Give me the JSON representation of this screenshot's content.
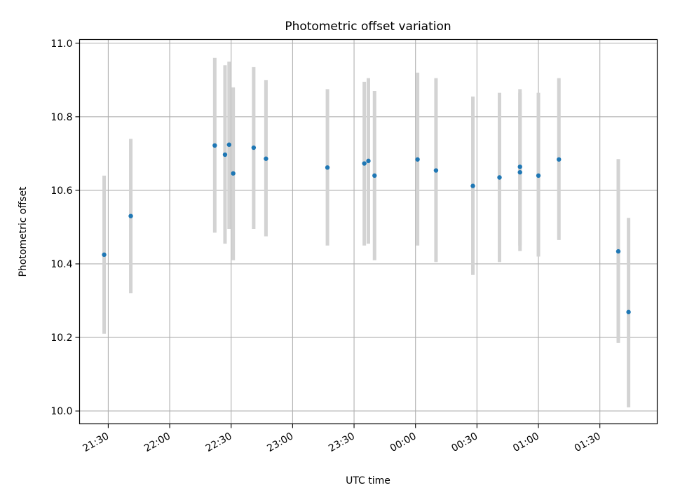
{
  "chart_data": {
    "type": "scatter",
    "title": "Photometric offset variation",
    "xlabel": "UTC time",
    "ylabel": "Photometric offset",
    "x_unit": "UTC time (HH:MM), spanning midnight",
    "xlim": [
      "21:16",
      "01:58"
    ],
    "ylim": [
      9.965,
      11.01
    ],
    "x_ticks": [
      "21:30",
      "22:00",
      "22:30",
      "23:00",
      "23:30",
      "00:00",
      "00:30",
      "01:00",
      "01:30"
    ],
    "y_ticks": [
      10.0,
      10.2,
      10.4,
      10.6,
      10.8,
      11.0
    ],
    "y_tick_labels": [
      "10.0",
      "10.2",
      "10.4",
      "10.6",
      "10.8",
      "11.0"
    ],
    "grid": true,
    "colors": {
      "points": "#1f77b4",
      "error_bars": "#d3d3d3",
      "grid": "#b0b0b0"
    },
    "points": [
      {
        "x": "21:28",
        "y": 10.425,
        "err_low": 10.21,
        "err_high": 10.64
      },
      {
        "x": "21:41",
        "y": 10.53,
        "err_low": 10.32,
        "err_high": 10.74
      },
      {
        "x": "22:22",
        "y": 10.722,
        "err_low": 10.485,
        "err_high": 10.96
      },
      {
        "x": "22:27",
        "y": 10.697,
        "err_low": 10.455,
        "err_high": 10.94
      },
      {
        "x": "22:29",
        "y": 10.724,
        "err_low": 10.495,
        "err_high": 10.95
      },
      {
        "x": "22:31",
        "y": 10.646,
        "err_low": 10.41,
        "err_high": 10.88
      },
      {
        "x": "22:41",
        "y": 10.716,
        "err_low": 10.495,
        "err_high": 10.935
      },
      {
        "x": "22:47",
        "y": 10.686,
        "err_low": 10.475,
        "err_high": 10.9
      },
      {
        "x": "23:17",
        "y": 10.662,
        "err_low": 10.45,
        "err_high": 10.875
      },
      {
        "x": "23:35",
        "y": 10.673,
        "err_low": 10.45,
        "err_high": 10.895
      },
      {
        "x": "23:37",
        "y": 10.68,
        "err_low": 10.455,
        "err_high": 10.905
      },
      {
        "x": "23:40",
        "y": 10.64,
        "err_low": 10.41,
        "err_high": 10.87
      },
      {
        "x": "00:01",
        "y": 10.684,
        "err_low": 10.45,
        "err_high": 10.92
      },
      {
        "x": "00:10",
        "y": 10.654,
        "err_low": 10.405,
        "err_high": 10.905
      },
      {
        "x": "00:28",
        "y": 10.612,
        "err_low": 10.37,
        "err_high": 10.855
      },
      {
        "x": "00:41",
        "y": 10.635,
        "err_low": 10.405,
        "err_high": 10.865
      },
      {
        "x": "00:51",
        "y": 10.649,
        "err_low": 10.435,
        "err_high": 10.865
      },
      {
        "x": "00:51",
        "y": 10.664,
        "err_low": 10.45,
        "err_high": 10.875
      },
      {
        "x": "01:00",
        "y": 10.64,
        "err_low": 10.42,
        "err_high": 10.865
      },
      {
        "x": "01:10",
        "y": 10.684,
        "err_low": 10.465,
        "err_high": 10.905
      },
      {
        "x": "01:39",
        "y": 10.434,
        "err_low": 10.185,
        "err_high": 10.685
      },
      {
        "x": "01:44",
        "y": 10.269,
        "err_low": 10.01,
        "err_high": 10.525
      }
    ]
  }
}
